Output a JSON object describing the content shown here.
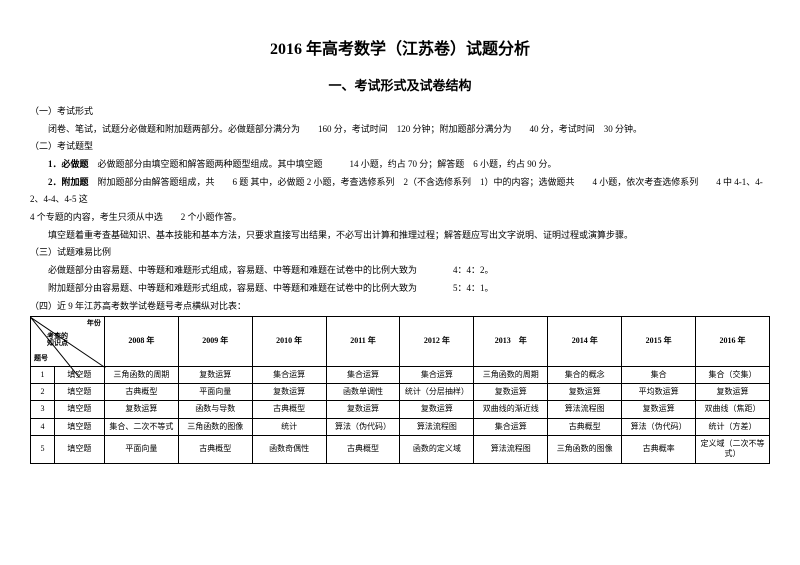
{
  "title": "2016 年高考数学（江苏卷）试题分析",
  "section1_title": "一、考试形式及试卷结构",
  "s1_label": "（一）考试形式",
  "s1_p1": "闭卷、笔试，试题分必做题和附加题两部分。必做题部分满分为　　160 分，考试时间　120 分钟；附加题部分满分为　　40 分，考试时间　30 分钟。",
  "s2_label": "（二）考试题型",
  "s2_p1": "1．必做题　必做题部分由填空题和解答题两种题型组成。其中填空题　　　14 小题，约占 70 分；解答题　6 小题，约占 90 分。",
  "s2_p2": "2．附加题　附加题部分由解答题组成，共　　6 题 其中，必做题 2 小题，考查选修系列　2（不含选修系列　1）中的内容；选做题共　　4 小题，依次考查选修系列　　4 中 4-1、4-2、4-4、4-5 这",
  "s2_p2b": "4 个专题的内容，考生只须从中选　　2 个小题作答。",
  "s2_p3": "填空题着重考查基础知识、基本技能和基本方法，只要求直接写出结果，不必写出计算和推理过程；解答题应写出文字说明、证明过程或演算步骤。",
  "s3_label": "（三）试题难易比例",
  "s3_p1": "必做题部分由容易题、中等题和难题形式组成，容易题、中等题和难题在试卷中的比例大致为　　　　4：4：2。",
  "s3_p2": "附加题部分由容易题、中等题和难题形式组成，容易题、中等题和难题在试卷中的比例大致为　　　　5：4：1。",
  "s4_label": "（四）近 9 年江苏高考数学试卷题号考点横纵对比表：",
  "table": {
    "diag_tr": "年份",
    "diag_mid": "考查的\n知识点",
    "diag_bl": "题号",
    "col2_header": "题型",
    "years": [
      "2008 年",
      "2009 年",
      "2010 年",
      "2011 年",
      "2012 年",
      "2013　年",
      "2014 年",
      "2015 年",
      "2016 年"
    ],
    "rows": [
      {
        "num": "1",
        "type": "填空题",
        "cells": [
          "三角函数的周期",
          "复数运算",
          "集合运算",
          "集合运算",
          "集合运算",
          "三角函数的周期",
          "集合的概念",
          "集合",
          "集合（交集）"
        ]
      },
      {
        "num": "2",
        "type": "填空题",
        "cells": [
          "古典概型",
          "平面向量",
          "复数运算",
          "函数单调性",
          "统计（分层抽样）",
          "复数运算",
          "复数运算",
          "平均数运算",
          "复数运算"
        ]
      },
      {
        "num": "3",
        "type": "填空题",
        "cells": [
          "复数运算",
          "函数与导数",
          "古典概型",
          "复数运算",
          "复数运算",
          "双曲线的渐近线",
          "算法流程图",
          "复数运算",
          "双曲线（焦距）"
        ]
      },
      {
        "num": "4",
        "type": "填空题",
        "cells": [
          "集合、二次不等式",
          "三角函数的图像",
          "统计",
          "算法（伪代码）",
          "算法流程图",
          "集合运算",
          "古典概型",
          "算法（伪代码）",
          "统计（方差）"
        ]
      },
      {
        "num": "5",
        "type": "填空题",
        "cells": [
          "平面向量",
          "古典概型",
          "函数奇偶性",
          "古典概型",
          "函数的定义域",
          "算法流程图",
          "三角函数的图像",
          "古典概率",
          "定义域（二次不等式）"
        ]
      }
    ]
  }
}
